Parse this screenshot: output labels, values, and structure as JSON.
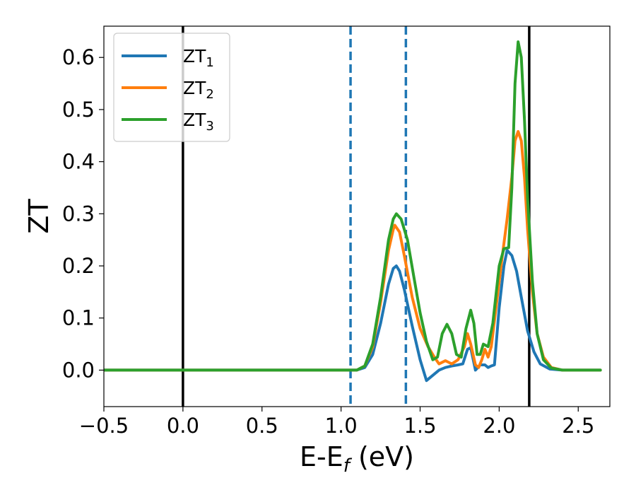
{
  "chart_data": {
    "type": "line",
    "xlabel": {
      "base": "E-E",
      "sub": "f",
      "tail": " (eV)"
    },
    "ylabel": "ZT",
    "xlim": [
      -0.5,
      2.7
    ],
    "ylim": [
      -0.07,
      0.66
    ],
    "xticks": [
      -0.5,
      0.0,
      0.5,
      1.0,
      1.5,
      2.0,
      2.5
    ],
    "xtick_labels": [
      "−0.5",
      "0.0",
      "0.5",
      "1.0",
      "1.5",
      "2.0",
      "2.5"
    ],
    "yticks": [
      0.0,
      0.1,
      0.2,
      0.3,
      0.4,
      0.5,
      0.6
    ],
    "ytick_labels": [
      "0.0",
      "0.1",
      "0.2",
      "0.3",
      "0.4",
      "0.5",
      "0.6"
    ],
    "grid": false,
    "legend_position": "top-left",
    "vertical_lines": [
      {
        "x": 0.0,
        "style": "solid",
        "color": "#000000"
      },
      {
        "x": 2.19,
        "style": "solid",
        "color": "#000000"
      },
      {
        "x": 1.06,
        "style": "dashed",
        "color": "#1f77b4"
      },
      {
        "x": 1.41,
        "style": "dashed",
        "color": "#1f77b4"
      }
    ],
    "series": [
      {
        "name": "ZT",
        "name_sub": "1",
        "color": "#1f77b4",
        "points": [
          [
            -0.5,
            0
          ],
          [
            1.1,
            0
          ],
          [
            1.15,
            0.005
          ],
          [
            1.2,
            0.03
          ],
          [
            1.25,
            0.09
          ],
          [
            1.3,
            0.165
          ],
          [
            1.33,
            0.195
          ],
          [
            1.35,
            0.2
          ],
          [
            1.37,
            0.19
          ],
          [
            1.4,
            0.155
          ],
          [
            1.45,
            0.085
          ],
          [
            1.5,
            0.02
          ],
          [
            1.54,
            -0.02
          ],
          [
            1.58,
            -0.01
          ],
          [
            1.62,
            0.0
          ],
          [
            1.66,
            0.005
          ],
          [
            1.7,
            0.008
          ],
          [
            1.74,
            0.01
          ],
          [
            1.77,
            0.012
          ],
          [
            1.8,
            0.04
          ],
          [
            1.82,
            0.043
          ],
          [
            1.85,
            0.0
          ],
          [
            1.88,
            0.01
          ],
          [
            1.91,
            0.01
          ],
          [
            1.93,
            0.005
          ],
          [
            1.95,
            0.008
          ],
          [
            1.97,
            0.01
          ],
          [
            2.0,
            0.12
          ],
          [
            2.03,
            0.2
          ],
          [
            2.05,
            0.23
          ],
          [
            2.08,
            0.22
          ],
          [
            2.11,
            0.19
          ],
          [
            2.14,
            0.14
          ],
          [
            2.18,
            0.075
          ],
          [
            2.22,
            0.035
          ],
          [
            2.26,
            0.012
          ],
          [
            2.32,
            0.002
          ],
          [
            2.4,
            0
          ],
          [
            2.64,
            0
          ]
        ]
      },
      {
        "name": "ZT",
        "name_sub": "2",
        "color": "#ff7f0e",
        "points": [
          [
            -0.5,
            0
          ],
          [
            1.1,
            0
          ],
          [
            1.15,
            0.008
          ],
          [
            1.2,
            0.045
          ],
          [
            1.25,
            0.13
          ],
          [
            1.3,
            0.23
          ],
          [
            1.33,
            0.27
          ],
          [
            1.34,
            0.278
          ],
          [
            1.37,
            0.265
          ],
          [
            1.4,
            0.22
          ],
          [
            1.45,
            0.14
          ],
          [
            1.5,
            0.08
          ],
          [
            1.55,
            0.045
          ],
          [
            1.59,
            0.025
          ],
          [
            1.62,
            0.012
          ],
          [
            1.66,
            0.018
          ],
          [
            1.7,
            0.012
          ],
          [
            1.74,
            0.02
          ],
          [
            1.78,
            0.045
          ],
          [
            1.8,
            0.07
          ],
          [
            1.82,
            0.05
          ],
          [
            1.85,
            0.01
          ],
          [
            1.87,
            0.005
          ],
          [
            1.89,
            0.02
          ],
          [
            1.91,
            0.04
          ],
          [
            1.93,
            0.025
          ],
          [
            1.95,
            0.045
          ],
          [
            1.98,
            0.12
          ],
          [
            2.02,
            0.22
          ],
          [
            2.05,
            0.29
          ],
          [
            2.08,
            0.37
          ],
          [
            2.1,
            0.44
          ],
          [
            2.12,
            0.458
          ],
          [
            2.14,
            0.44
          ],
          [
            2.16,
            0.37
          ],
          [
            2.18,
            0.27
          ],
          [
            2.21,
            0.15
          ],
          [
            2.24,
            0.07
          ],
          [
            2.28,
            0.025
          ],
          [
            2.33,
            0.005
          ],
          [
            2.4,
            0
          ],
          [
            2.64,
            0
          ]
        ]
      },
      {
        "name": "ZT",
        "name_sub": "3",
        "color": "#2ca02c",
        "points": [
          [
            -0.5,
            0
          ],
          [
            1.1,
            0
          ],
          [
            1.15,
            0.008
          ],
          [
            1.2,
            0.05
          ],
          [
            1.25,
            0.14
          ],
          [
            1.3,
            0.25
          ],
          [
            1.33,
            0.29
          ],
          [
            1.35,
            0.3
          ],
          [
            1.38,
            0.29
          ],
          [
            1.42,
            0.25
          ],
          [
            1.46,
            0.18
          ],
          [
            1.5,
            0.11
          ],
          [
            1.54,
            0.055
          ],
          [
            1.58,
            0.02
          ],
          [
            1.61,
            0.025
          ],
          [
            1.64,
            0.07
          ],
          [
            1.67,
            0.088
          ],
          [
            1.7,
            0.07
          ],
          [
            1.73,
            0.03
          ],
          [
            1.76,
            0.025
          ],
          [
            1.79,
            0.08
          ],
          [
            1.82,
            0.115
          ],
          [
            1.84,
            0.09
          ],
          [
            1.86,
            0.03
          ],
          [
            1.88,
            0.03
          ],
          [
            1.9,
            0.05
          ],
          [
            1.93,
            0.045
          ],
          [
            1.96,
            0.09
          ],
          [
            2.0,
            0.2
          ],
          [
            2.03,
            0.233
          ],
          [
            2.06,
            0.235
          ],
          [
            2.08,
            0.35
          ],
          [
            2.1,
            0.55
          ],
          [
            2.12,
            0.63
          ],
          [
            2.14,
            0.6
          ],
          [
            2.16,
            0.48
          ],
          [
            2.18,
            0.33
          ],
          [
            2.21,
            0.17
          ],
          [
            2.24,
            0.07
          ],
          [
            2.28,
            0.02
          ],
          [
            2.33,
            0.004
          ],
          [
            2.4,
            0
          ],
          [
            2.64,
            0
          ]
        ]
      }
    ]
  }
}
